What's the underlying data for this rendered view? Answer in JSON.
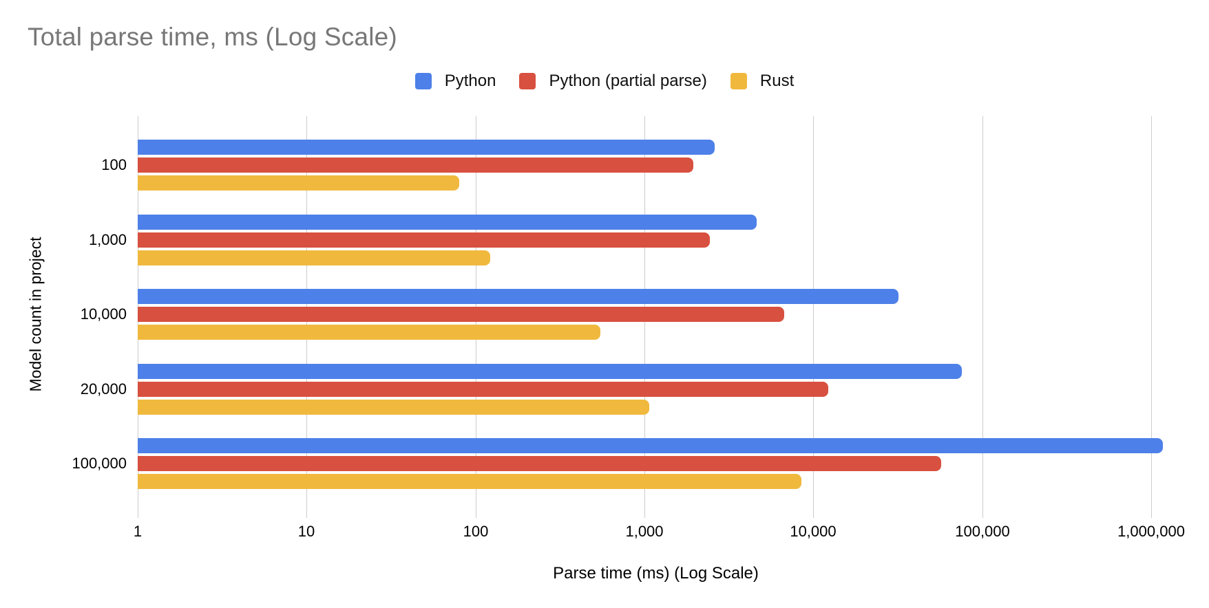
{
  "title": "Total parse time, ms (Log Scale)",
  "legend": {
    "items": [
      {
        "label": "Python",
        "color": "#4D80E8"
      },
      {
        "label": "Python (partial parse)",
        "color": "#D8503F"
      },
      {
        "label": "Rust",
        "color": "#F0B93E"
      }
    ]
  },
  "x_axis": {
    "title": "Parse time (ms) (Log Scale)",
    "tick_labels": [
      "1",
      "10",
      "100",
      "1,000",
      "10,000",
      "100,000",
      "1,000,000"
    ]
  },
  "y_axis": {
    "title": "Model count in project",
    "categories": [
      "100",
      "1,000",
      "10,000",
      "20,000",
      "100,000"
    ]
  },
  "chart_data": {
    "type": "bar",
    "orientation": "horizontal",
    "x_scale": "log10",
    "x_range": [
      1,
      1000000
    ],
    "grid": true,
    "legend_position": "top",
    "title": "Total parse time, ms (Log Scale)",
    "xlabel": "Parse time (ms) (Log Scale)",
    "ylabel": "Model count in project",
    "categories": [
      "100",
      "1,000",
      "10,000",
      "20,000",
      "100,000"
    ],
    "series": [
      {
        "name": "Python",
        "color": "#4D80E8",
        "values": [
          2600,
          4600,
          32000,
          76000,
          1170000
        ]
      },
      {
        "name": "Python (partial parse)",
        "color": "#D8503F",
        "values": [
          1950,
          2450,
          6700,
          12300,
          57000
        ]
      },
      {
        "name": "Rust",
        "color": "#F0B93E",
        "values": [
          80,
          122,
          550,
          1070,
          8500
        ]
      }
    ]
  },
  "colors": {
    "title_text": "#777777",
    "axis_text": "#000000",
    "gridline": "#cccccc",
    "background": "#ffffff"
  }
}
